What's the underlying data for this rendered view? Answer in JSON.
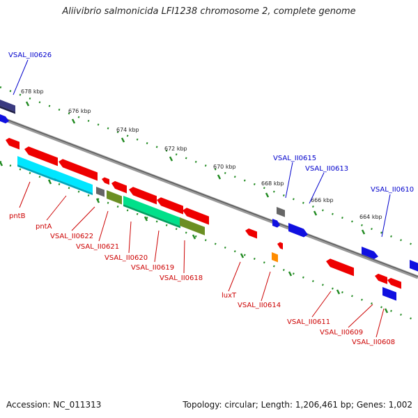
{
  "title": "Aliivibrio salmonicida LFI1238 chromosome 2, complete genome",
  "footer": {
    "accession": "Accession: NC_011313",
    "summary": "Topology: circular; Length: 1,206,461 bp; Genes: 1,002"
  },
  "colors": {
    "forward_label": "#0000cc",
    "reverse_label": "#cc0000",
    "backbone": "#888888",
    "tick": "#228b22"
  },
  "kbp_ticks": [
    "678 kbp",
    "676 kbp",
    "674 kbp",
    "672 kbp",
    "670 kbp",
    "668 kbp",
    "666 kbp",
    "664 kbp"
  ],
  "forward_labels": [
    "VSAL_II0626",
    "VSAL_II0615",
    "VSAL_II0613",
    "VSAL_II0610"
  ],
  "reverse_labels": [
    "pntB",
    "pntA",
    "VSAL_II0622",
    "VSAL_II0621",
    "VSAL_II0620",
    "VSAL_II0619",
    "VSAL_II0618",
    "luxT",
    "VSAL_II0614",
    "VSAL_II0611",
    "VSAL_II0609",
    "VSAL_II0608"
  ]
}
